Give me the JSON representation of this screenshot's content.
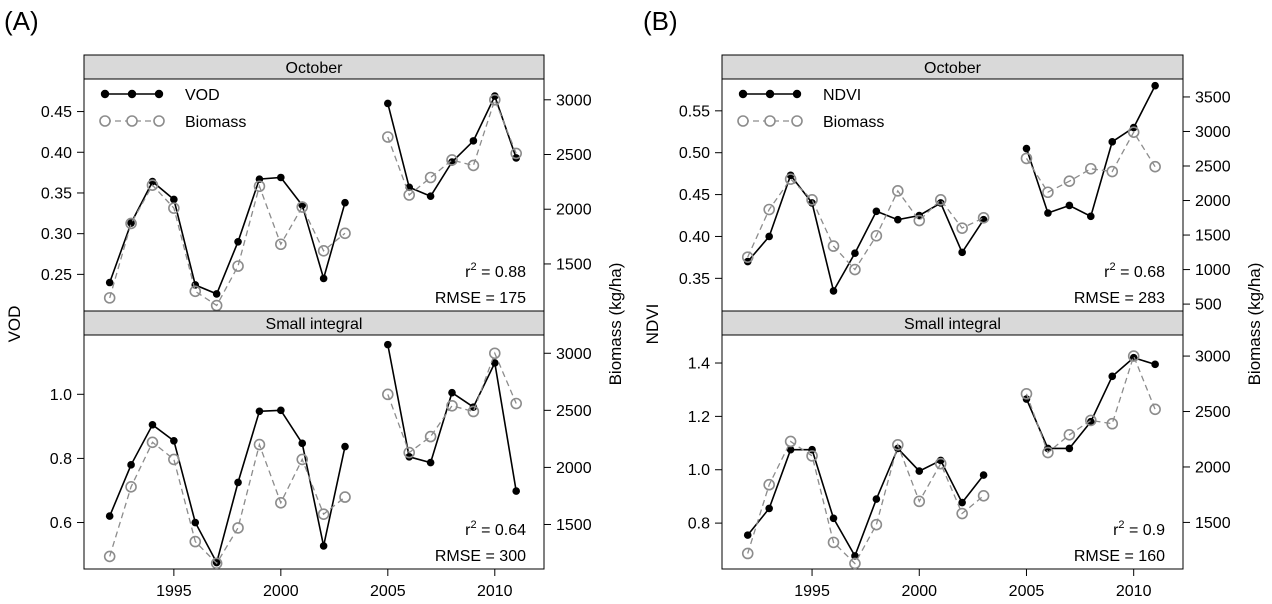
{
  "figure": {
    "panel_labels": [
      "(A)",
      "(B)"
    ]
  },
  "colors": {
    "primary_series": "#000000",
    "biomass_series": "#8c8c8c",
    "strip_fill": "#d9d9d9"
  },
  "chart_data": [
    {
      "id": "A",
      "type": "line",
      "panel_label": "(A)",
      "ylabel_left": "VOD",
      "ylabel_right": "Biomass (kg/ha)",
      "legend": {
        "placement": "top-left",
        "entries": [
          "VOD",
          "Biomass"
        ]
      },
      "xlim": [
        1990.8,
        2012.3
      ],
      "xticks": [
        1995,
        2000,
        2005,
        2010
      ],
      "grid": false,
      "subplots": [
        {
          "strip": "October",
          "ylim_left": [
            0.205,
            0.49
          ],
          "yticks_left": [
            0.25,
            0.3,
            0.35,
            0.4,
            0.45
          ],
          "yticklabels_left": [
            "0.25",
            "0.30",
            "0.35",
            "0.40",
            "0.45"
          ],
          "ylim_right": [
            1070,
            3190
          ],
          "yticks_right": [
            1500,
            2000,
            2500,
            3000
          ],
          "yticklabels_right": [
            "1500",
            "2000",
            "2500",
            "3000"
          ],
          "series": [
            {
              "name": "VOD",
              "axis": "left",
              "style": "solid-filled",
              "segments": [
                {
                  "x": [
                    1992,
                    1993,
                    1994,
                    1995,
                    1996,
                    1997,
                    1998,
                    1999,
                    2000,
                    2001,
                    2002,
                    2003
                  ],
                  "y": [
                    0.24,
                    0.313,
                    0.364,
                    0.342,
                    0.237,
                    0.226,
                    0.29,
                    0.367,
                    0.369,
                    0.335,
                    0.245,
                    0.338
                  ]
                },
                {
                  "x": [
                    2005,
                    2006,
                    2007,
                    2008,
                    2009,
                    2010,
                    2011
                  ],
                  "y": [
                    0.46,
                    0.357,
                    0.346,
                    0.388,
                    0.414,
                    0.469,
                    0.393
                  ]
                }
              ]
            },
            {
              "name": "Biomass",
              "axis": "right",
              "style": "dashed-open",
              "segments": [
                {
                  "x": [
                    1992,
                    1993,
                    1994,
                    1995,
                    1996,
                    1997,
                    1998,
                    1999,
                    2000,
                    2001,
                    2002,
                    2003
                  ],
                  "y": [
                    1190,
                    1870,
                    2220,
                    2010,
                    1250,
                    1120,
                    1480,
                    2210,
                    1680,
                    2020,
                    1620,
                    1780
                  ]
                },
                {
                  "x": [
                    2005,
                    2006,
                    2007,
                    2008,
                    2009,
                    2010,
                    2011
                  ],
                  "y": [
                    2660,
                    2130,
                    2290,
                    2450,
                    2400,
                    3000,
                    2510
                  ]
                }
              ]
            }
          ],
          "annotations": [
            "r2 = 0.88",
            "RMSE = 175"
          ]
        },
        {
          "strip": "Small integral",
          "ylim_left": [
            0.455,
            1.185
          ],
          "yticks_left": [
            0.6,
            0.8,
            1.0
          ],
          "yticklabels_left": [
            "0.6",
            "0.8",
            "1.0"
          ],
          "ylim_right": [
            1110,
            3160
          ],
          "yticks_right": [
            1500,
            2000,
            2500,
            3000
          ],
          "yticklabels_right": [
            "1500",
            "2000",
            "2500",
            "3000"
          ],
          "series": [
            {
              "name": "VOD",
              "axis": "left",
              "style": "solid-filled",
              "segments": [
                {
                  "x": [
                    1992,
                    1993,
                    1994,
                    1995,
                    1996,
                    1997,
                    1998,
                    1999,
                    2000,
                    2001,
                    2002,
                    2003
                  ],
                  "y": [
                    0.62,
                    0.78,
                    0.905,
                    0.855,
                    0.6,
                    0.475,
                    0.725,
                    0.947,
                    0.95,
                    0.847,
                    0.527,
                    0.837
                  ]
                },
                {
                  "x": [
                    2005,
                    2006,
                    2007,
                    2008,
                    2009,
                    2010,
                    2011
                  ],
                  "y": [
                    1.155,
                    0.805,
                    0.787,
                    1.005,
                    0.96,
                    1.098,
                    0.698
                  ]
                }
              ]
            },
            {
              "name": "Biomass",
              "axis": "right",
              "style": "dashed-open",
              "segments": [
                {
                  "x": [
                    1992,
                    1993,
                    1994,
                    1995,
                    1996,
                    1997,
                    1998,
                    1999,
                    2000,
                    2001,
                    2002,
                    2003
                  ],
                  "y": [
                    1220,
                    1830,
                    2220,
                    2070,
                    1350,
                    1160,
                    1470,
                    2200,
                    1690,
                    2070,
                    1590,
                    1740
                  ]
                },
                {
                  "x": [
                    2005,
                    2006,
                    2007,
                    2008,
                    2009,
                    2010,
                    2011
                  ],
                  "y": [
                    2640,
                    2130,
                    2270,
                    2540,
                    2490,
                    3000,
                    2560
                  ]
                }
              ]
            }
          ],
          "annotations": [
            "r2 = 0.64",
            "RMSE = 300"
          ]
        }
      ]
    },
    {
      "id": "B",
      "type": "line",
      "panel_label": "(B)",
      "ylabel_left": "NDVI",
      "ylabel_right": "Biomass (kg/ha)",
      "legend": {
        "placement": "top-left",
        "entries": [
          "NDVI",
          "Biomass"
        ]
      },
      "xlim": [
        1990.8,
        2012.3
      ],
      "xticks": [
        1995,
        2000,
        2005,
        2010
      ],
      "grid": false,
      "subplots": [
        {
          "strip": "October",
          "ylim_left": [
            0.311,
            0.588
          ],
          "yticks_left": [
            0.35,
            0.4,
            0.45,
            0.5,
            0.55
          ],
          "yticklabels_left": [
            "0.35",
            "0.40",
            "0.45",
            "0.50",
            "0.55"
          ],
          "ylim_right": [
            400,
            3760
          ],
          "yticks_right": [
            500,
            1000,
            1500,
            2000,
            2500,
            3000,
            3500
          ],
          "yticklabels_right": [
            "500",
            "1000",
            "1500",
            "2000",
            "2500",
            "3000",
            "3500"
          ],
          "series": [
            {
              "name": "NDVI",
              "axis": "left",
              "style": "solid-filled",
              "segments": [
                {
                  "x": [
                    1992,
                    1993,
                    1994,
                    1995,
                    1996,
                    1997,
                    1998,
                    1999,
                    2000,
                    2001,
                    2002,
                    2003
                  ],
                  "y": [
                    0.37,
                    0.4,
                    0.473,
                    0.44,
                    0.335,
                    0.38,
                    0.43,
                    0.42,
                    0.425,
                    0.44,
                    0.381,
                    0.42
                  ]
                },
                {
                  "x": [
                    2005,
                    2006,
                    2007,
                    2008,
                    2009,
                    2010,
                    2011
                  ],
                  "y": [
                    0.505,
                    0.428,
                    0.437,
                    0.424,
                    0.513,
                    0.53,
                    0.58
                  ]
                }
              ]
            },
            {
              "name": "Biomass",
              "axis": "right",
              "style": "dashed-open",
              "segments": [
                {
                  "x": [
                    1992,
                    1993,
                    1994,
                    1995,
                    1996,
                    1997,
                    1998,
                    1999,
                    2000,
                    2001,
                    2002,
                    2003
                  ],
                  "y": [
                    1180,
                    1870,
                    2310,
                    2010,
                    1340,
                    1000,
                    1490,
                    2140,
                    1710,
                    2010,
                    1600,
                    1750
                  ]
                },
                {
                  "x": [
                    2005,
                    2006,
                    2007,
                    2008,
                    2009,
                    2010,
                    2011
                  ],
                  "y": [
                    2610,
                    2120,
                    2280,
                    2460,
                    2420,
                    2990,
                    2490
                  ]
                }
              ]
            }
          ],
          "annotations": [
            "r2 = 0.68",
            "RMSE = 283"
          ]
        },
        {
          "strip": "Small integral",
          "ylim_left": [
            0.628,
            1.505
          ],
          "yticks_left": [
            0.8,
            1.0,
            1.2,
            1.4
          ],
          "yticklabels_left": [
            "0.8",
            "1.0",
            "1.2",
            "1.4"
          ],
          "ylim_right": [
            1080,
            3190
          ],
          "yticks_right": [
            1500,
            2000,
            2500,
            3000
          ],
          "yticklabels_right": [
            "1500",
            "2000",
            "2500",
            "3000"
          ],
          "series": [
            {
              "name": "NDVI",
              "axis": "left",
              "style": "solid-filled",
              "segments": [
                {
                  "x": [
                    1992,
                    1993,
                    1994,
                    1995,
                    1996,
                    1997,
                    1998,
                    1999,
                    2000,
                    2001,
                    2002,
                    2003
                  ],
                  "y": [
                    0.755,
                    0.855,
                    1.075,
                    1.075,
                    0.818,
                    0.677,
                    0.89,
                    1.08,
                    0.995,
                    1.035,
                    0.877,
                    0.98
                  ]
                },
                {
                  "x": [
                    2005,
                    2006,
                    2007,
                    2008,
                    2009,
                    2010,
                    2011
                  ],
                  "y": [
                    1.265,
                    1.08,
                    1.08,
                    1.18,
                    1.35,
                    1.42,
                    1.395
                  ]
                }
              ]
            },
            {
              "name": "Biomass",
              "axis": "right",
              "style": "dashed-open",
              "segments": [
                {
                  "x": [
                    1992,
                    1993,
                    1994,
                    1995,
                    1996,
                    1997,
                    1998,
                    1999,
                    2000,
                    2001,
                    2002,
                    2003
                  ],
                  "y": [
                    1220,
                    1840,
                    2230,
                    2100,
                    1320,
                    1130,
                    1480,
                    2200,
                    1690,
                    2030,
                    1580,
                    1740
                  ]
                },
                {
                  "x": [
                    2005,
                    2006,
                    2007,
                    2008,
                    2009,
                    2010,
                    2011
                  ],
                  "y": [
                    2660,
                    2130,
                    2290,
                    2420,
                    2390,
                    3000,
                    2520
                  ]
                }
              ]
            }
          ],
          "annotations": [
            "r2 = 0.9",
            "RMSE = 160"
          ]
        }
      ]
    }
  ]
}
